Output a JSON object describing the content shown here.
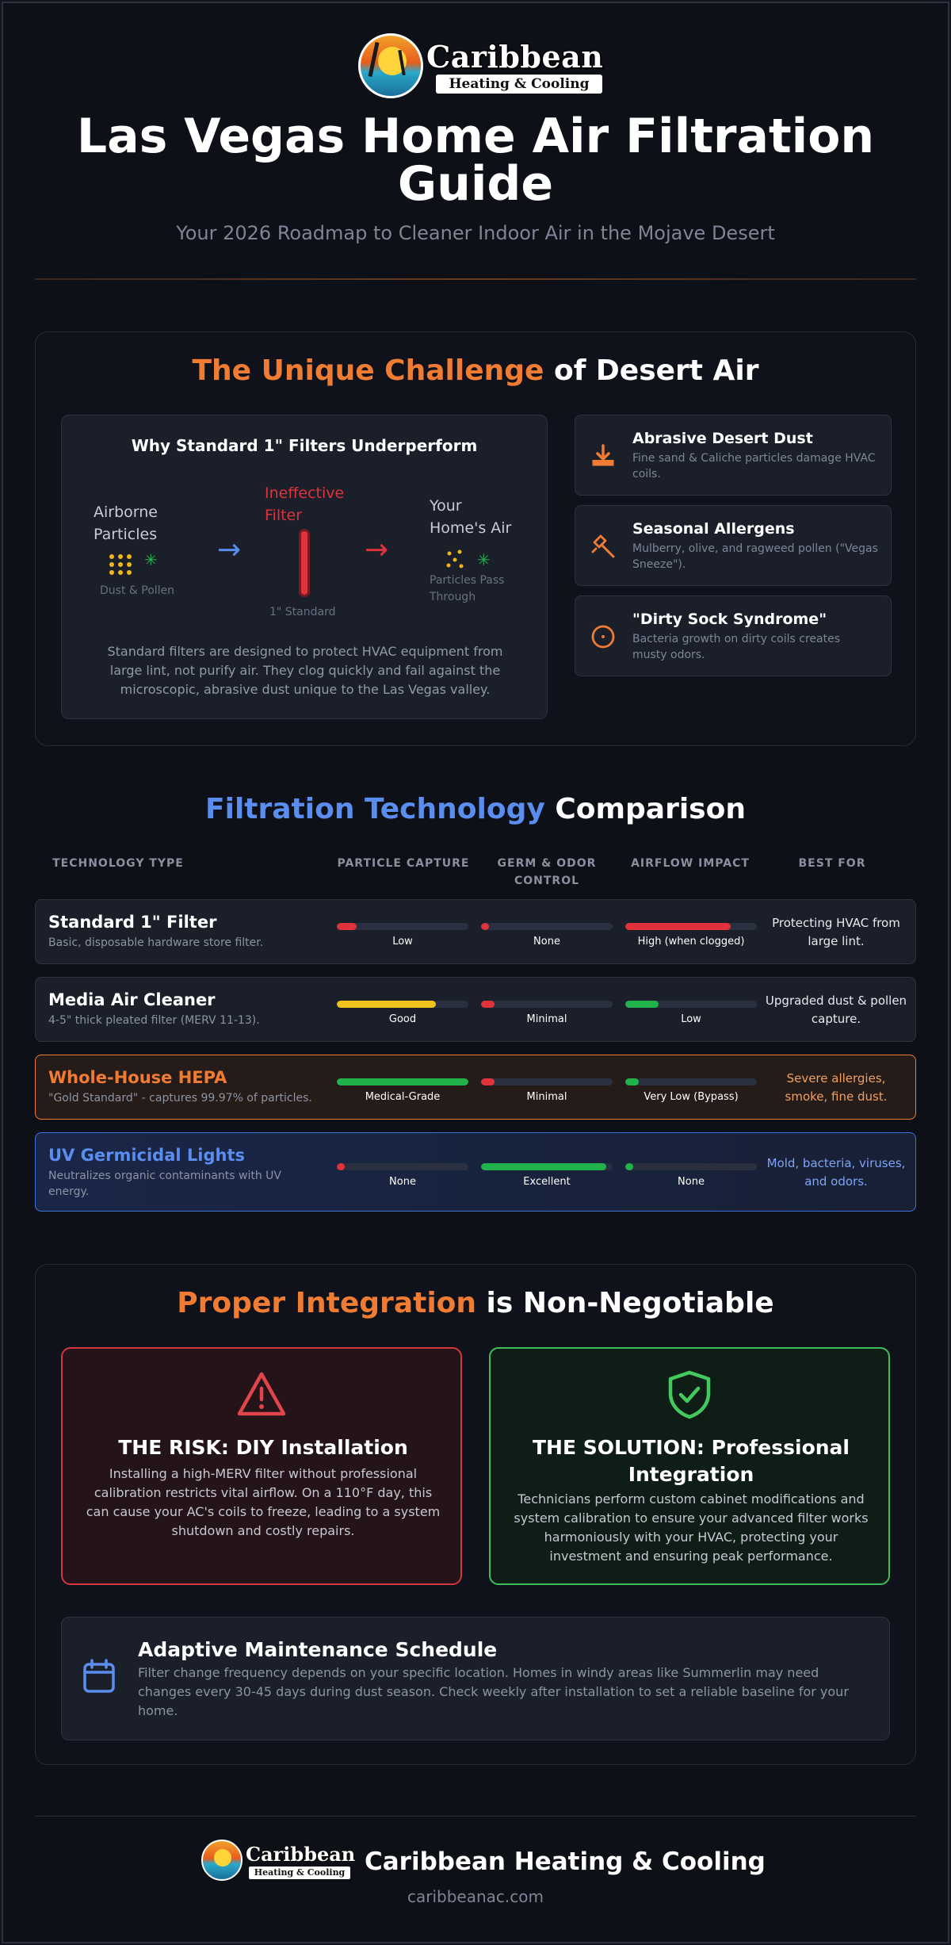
{
  "brand": {
    "logo_name": "Caribbean",
    "logo_sub": "Heating & Cooling",
    "name": "Caribbean Heating & Cooling",
    "url": "caribbeanac.com"
  },
  "header": {
    "title": "Las Vegas Home Air Filtration Guide",
    "subtitle": "Your 2026 Roadmap to Cleaner Indoor Air in the Mojave Desert"
  },
  "challenge": {
    "title_accent": "The Unique Challenge",
    "title_rest": " of Desert Air",
    "diagram": {
      "title": "Why Standard 1\" Filters Underperform",
      "left_label_1": "Airborne",
      "left_label_2": "Particles",
      "left_caption": "Dust & Pollen",
      "mid_label_1": "Ineffective",
      "mid_label_2": "Filter",
      "mid_caption": "1\" Standard",
      "right_label_1": "Your",
      "right_label_2": "Home's Air",
      "right_caption_1": "Particles Pass",
      "right_caption_2": "Through",
      "note": "Standard filters are designed to protect HVAC equipment from large lint, not purify air. They clog quickly and fail against the microscopic, abrasive dust unique to the Las Vegas valley."
    },
    "cards": [
      {
        "title": "Abrasive Desert Dust",
        "desc": "Fine sand & Caliche particles damage HVAC coils.",
        "icon": "download-icon"
      },
      {
        "title": "Seasonal Allergens",
        "desc": "Mulberry, olive, and ragweed pollen (\"Vegas Sneeze\").",
        "icon": "hammer-icon"
      },
      {
        "title": "\"Dirty Sock Syndrome\"",
        "desc": "Bacteria growth on dirty coils creates musty odors.",
        "icon": "circle-dot-icon"
      }
    ]
  },
  "comparison": {
    "title_accent": "Filtration Technology",
    "title_rest": " Comparison",
    "headers": [
      "TECHNOLOGY TYPE",
      "PARTICLE CAPTURE",
      "GERM & ODOR CONTROL",
      "AIRFLOW IMPACT",
      "BEST FOR"
    ],
    "header_germ_1": "GERM & ODOR",
    "header_germ_2": "CONTROL",
    "rows": [
      {
        "name": "Standard 1\" Filter",
        "desc": "Basic, disposable hardware store filter.",
        "capture": "Low",
        "capture_level": 0.15,
        "capture_color": "#e0323a",
        "germ": "None",
        "germ_level": 0.05,
        "germ_color": "#e0323a",
        "airflow": "High (when clogged)",
        "airflow_level": 0.8,
        "airflow_color": "#e0323a",
        "best": "Protecting HVAC from large lint."
      },
      {
        "name": "Media Air Cleaner",
        "desc": "4-5\" thick pleated filter (MERV 11-13).",
        "capture": "Good",
        "capture_level": 0.75,
        "capture_color": "#f2c21c",
        "germ": "Minimal",
        "germ_level": 0.1,
        "germ_color": "#e0323a",
        "airflow": "Low",
        "airflow_level": 0.25,
        "airflow_color": "#22b24c",
        "best": "Upgraded dust & pollen capture."
      },
      {
        "name": "Whole-House HEPA",
        "desc": "\"Gold Standard\" - captures 99.97% of particles.",
        "capture": "Medical-Grade",
        "capture_level": 1.0,
        "capture_color": "#22b24c",
        "germ": "Minimal",
        "germ_level": 0.1,
        "germ_color": "#e0323a",
        "airflow": "Very Low (Bypass)",
        "airflow_level": 0.1,
        "airflow_color": "#22b24c",
        "best": "Severe allergies, smoke, fine dust."
      },
      {
        "name": "UV Germicidal Lights",
        "desc": "Neutralizes organic contaminants with UV energy.",
        "capture": "None",
        "capture_level": 0.05,
        "capture_color": "#e0323a",
        "germ": "Excellent",
        "germ_level": 0.95,
        "germ_color": "#22b24c",
        "airflow": "None",
        "airflow_level": 0.05,
        "airflow_color": "#22b24c",
        "best": "Mold, bacteria, viruses, and odors."
      }
    ]
  },
  "integration": {
    "title_accent": "Proper Integration",
    "title_rest": " is Non-Negotiable",
    "risk_title": "THE RISK: DIY Installation",
    "risk_text": "Installing a high-MERV filter without professional calibration restricts vital airflow. On a 110°F day, this can cause your AC's coils to freeze, leading to a system shutdown and costly repairs.",
    "solution_title_1": "THE SOLUTION: Professional",
    "solution_title_2": "Integration",
    "solution_text": "Technicians perform custom cabinet modifications and system calibration to ensure your advanced filter works harmoniously with your HVAC, protecting your investment and ensuring peak performance.",
    "maint_title": "Adaptive Maintenance Schedule",
    "maint_text": "Filter change frequency depends on your specific location. Homes in windy areas like Summerlin may need changes every 30-45 days during dust season. Check weekly after installation to set a reliable baseline for your home."
  },
  "colors": {
    "orange": "#f07c34",
    "blue": "#5b8def",
    "red": "#e0323a",
    "green": "#22b24c"
  }
}
